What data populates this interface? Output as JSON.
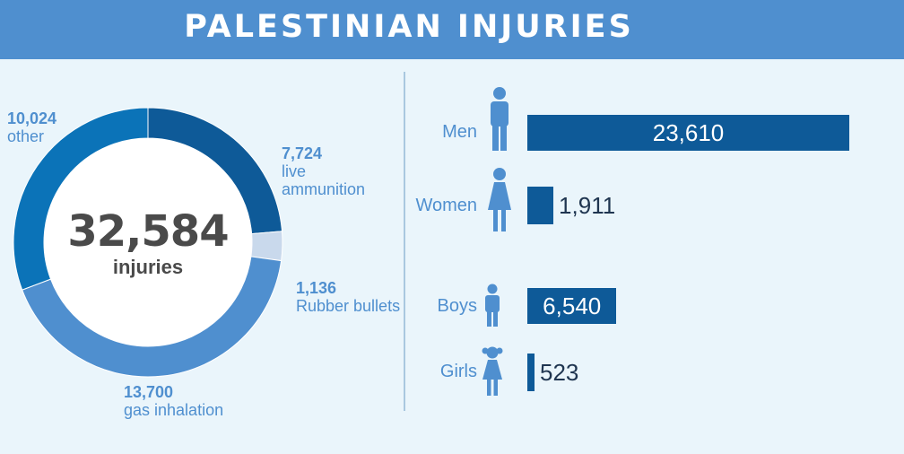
{
  "header": {
    "title": "PALESTINIAN INJURIES"
  },
  "total": {
    "value": "32,584",
    "label": "injuries"
  },
  "chart_data": [
    {
      "type": "pie",
      "total": 32584,
      "slices": [
        {
          "value": 7724,
          "value_label": "7,724",
          "label": "live ammunition",
          "color": "#0e5a98"
        },
        {
          "value": 1136,
          "value_label": "1,136",
          "label": "Rubber bullets",
          "color": "#c9d9ec"
        },
        {
          "value": 13700,
          "value_label": "13,700",
          "label": "gas inhalation",
          "color": "#4f8fcf"
        },
        {
          "value": 10024,
          "value_label": "10,024",
          "label": "other",
          "color": "#0b73b8"
        }
      ]
    },
    {
      "type": "bar",
      "categories": [
        "Men",
        "Women",
        "Boys",
        "Girls"
      ],
      "values": [
        23610,
        1911,
        6540,
        523
      ],
      "value_labels": [
        "23,610",
        "1,911",
        "6,540",
        "523"
      ],
      "icons": [
        "man-icon",
        "woman-icon",
        "boy-icon",
        "girl-icon"
      ],
      "color": "#0e5a98",
      "xlim": [
        0,
        23610
      ]
    }
  ]
}
